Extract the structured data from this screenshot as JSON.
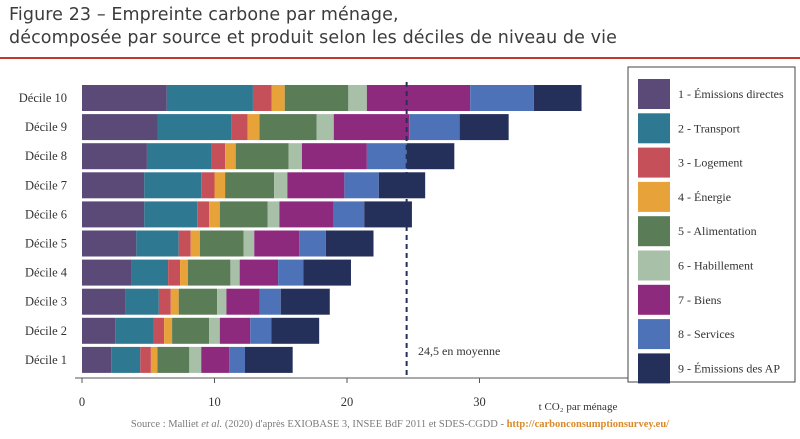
{
  "title_line1": "Figure 23 – Empreinte carbone par ménage,",
  "title_line2": "décomposée par source et produit selon les déciles de niveau de vie",
  "source": {
    "prefix": "Source : Malliet ",
    "etal": "et al.",
    "middle": " (2020) d'après EXIOBASE 3, INSEE BdF 2011 et SDES-CGDD - ",
    "link": "http://carbonconsumptionsurvey.eu/"
  },
  "chart_data": {
    "type": "bar",
    "orientation": "horizontal",
    "stacked": true,
    "categories": [
      "Décile 10",
      "Décile 9",
      "Décile 8",
      "Décile 7",
      "Décile 6",
      "Décile 5",
      "Décile 4",
      "Décile 3",
      "Décile 2",
      "Décile 1"
    ],
    "series": [
      {
        "name": "1 - Émissions directes",
        "color": "#5b4a78",
        "values": [
          6.4,
          5.7,
          4.9,
          4.7,
          4.7,
          4.1,
          3.7,
          3.3,
          2.5,
          2.2
        ]
      },
      {
        "name": "2 - Transport",
        "color": "#2f7891",
        "values": [
          6.5,
          5.6,
          4.9,
          4.3,
          4.0,
          3.2,
          2.8,
          2.5,
          2.9,
          2.2
        ]
      },
      {
        "name": "3 - Logement",
        "color": "#c6505a",
        "values": [
          1.4,
          1.2,
          1.0,
          1.0,
          0.9,
          0.9,
          0.9,
          0.9,
          0.8,
          0.8
        ]
      },
      {
        "name": "4 - Énergie",
        "color": "#e8a23a",
        "values": [
          1.0,
          0.9,
          0.8,
          0.8,
          0.8,
          0.7,
          0.6,
          0.6,
          0.6,
          0.5
        ]
      },
      {
        "name": "5 - Alimentation",
        "color": "#5a7c56",
        "values": [
          4.8,
          4.3,
          4.0,
          3.7,
          3.6,
          3.3,
          3.2,
          2.9,
          2.8,
          2.4
        ]
      },
      {
        "name": "6 - Habillement",
        "color": "#a8bfa8",
        "values": [
          1.4,
          1.3,
          1.0,
          1.0,
          0.9,
          0.8,
          0.7,
          0.7,
          0.8,
          0.9
        ]
      },
      {
        "name": "7 - Biens",
        "color": "#8e2a7e",
        "values": [
          7.8,
          5.7,
          4.9,
          4.3,
          4.1,
          3.4,
          2.9,
          2.5,
          2.3,
          2.1
        ]
      },
      {
        "name": "8 - Services",
        "color": "#4e72b8",
        "values": [
          4.8,
          3.8,
          3.0,
          2.6,
          2.3,
          2.0,
          1.9,
          1.6,
          1.6,
          1.2
        ]
      },
      {
        "name": "9 - Émissions des AP",
        "color": "#25305a",
        "values": [
          3.6,
          3.7,
          3.6,
          3.5,
          3.6,
          3.6,
          3.6,
          3.7,
          3.6,
          3.6
        ]
      }
    ],
    "xlim": [
      0,
      40
    ],
    "xticks": [
      0,
      10,
      20,
      30
    ],
    "xlabel": "t CO₂ par ménage",
    "reference_line": {
      "value": 24.5,
      "label": "24,5 en moyenne"
    },
    "legend_position": "right"
  }
}
